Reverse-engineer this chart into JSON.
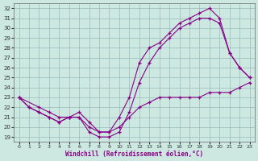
{
  "xlabel": "Windchill (Refroidissement éolien,°C)",
  "bg_color": "#cce8e0",
  "line_color": "#880088",
  "grid_color": "#99bbbb",
  "xlim_min": -0.5,
  "xlim_max": 23.5,
  "ylim_min": 18.5,
  "ylim_max": 32.5,
  "yticks": [
    19,
    20,
    21,
    22,
    23,
    24,
    25,
    26,
    27,
    28,
    29,
    30,
    31,
    32
  ],
  "xticks": [
    0,
    1,
    2,
    3,
    4,
    5,
    6,
    7,
    8,
    9,
    10,
    11,
    12,
    13,
    14,
    15,
    16,
    17,
    18,
    19,
    20,
    21,
    22,
    23
  ],
  "series": [
    {
      "x": [
        0,
        1,
        2,
        3,
        4,
        5,
        6,
        7,
        8,
        9,
        10,
        11,
        12,
        13,
        14,
        15,
        16,
        17,
        18,
        19,
        20,
        21,
        22,
        23
      ],
      "y": [
        23,
        22,
        21.5,
        21,
        20.5,
        21,
        21.5,
        20.5,
        19.5,
        19.5,
        21,
        23,
        26.5,
        28,
        28.5,
        29.5,
        30.5,
        31,
        31.5,
        32,
        31,
        27.5,
        26,
        25
      ]
    },
    {
      "x": [
        0,
        1,
        2,
        3,
        4,
        5,
        6,
        7,
        8,
        9,
        10,
        11,
        12,
        13,
        14,
        15,
        16,
        17,
        18,
        19,
        20,
        21,
        22,
        23
      ],
      "y": [
        23,
        22,
        21.5,
        21,
        20.5,
        21,
        21,
        19.5,
        19,
        19,
        19.5,
        21.5,
        24.5,
        26.5,
        28,
        29,
        30,
        30.5,
        31,
        31,
        30.5,
        27.5,
        26,
        25
      ]
    },
    {
      "x": [
        0,
        2,
        3,
        4,
        5,
        6,
        7,
        8,
        9,
        10,
        11,
        12,
        13,
        14,
        15,
        16,
        17,
        18,
        19,
        20,
        21,
        22,
        23
      ],
      "y": [
        23,
        22,
        21.5,
        21,
        21,
        21,
        20,
        19.5,
        19.5,
        20,
        21,
        22,
        22.5,
        23,
        23,
        23,
        23,
        23,
        23.5,
        23.5,
        23.5,
        24,
        24.5
      ]
    }
  ]
}
